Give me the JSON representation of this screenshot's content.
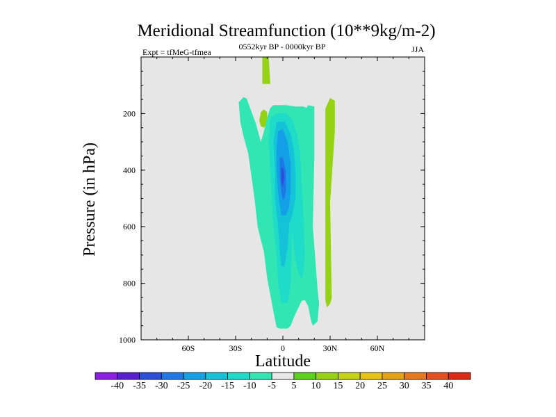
{
  "chart_data": {
    "type": "contour",
    "title": "Meridional Streamfunction (10**9kg/m-2)",
    "left_subtitle": "Expt = tfMeG-tfmea",
    "center_subtitle": "0552kyr BP - 0000kyr BP",
    "right_subtitle": "JJA",
    "xlabel": "Latitude",
    "ylabel": "Pressure (in hPa)",
    "xlim": [
      -90,
      90
    ],
    "ylim": [
      1000,
      0
    ],
    "y_reversed": true,
    "x_ticks": [
      {
        "value": -60,
        "label": "60S"
      },
      {
        "value": -30,
        "label": "30S"
      },
      {
        "value": 0,
        "label": "0"
      },
      {
        "value": 30,
        "label": "30N"
      },
      {
        "value": 60,
        "label": "60N"
      }
    ],
    "y_ticks": [
      {
        "value": 200,
        "label": "200"
      },
      {
        "value": 400,
        "label": "400"
      },
      {
        "value": 600,
        "label": "600"
      },
      {
        "value": 800,
        "label": "800"
      },
      {
        "value": 1000,
        "label": "1000"
      }
    ],
    "plot_background": "#e6e6e6",
    "colorbar": {
      "levels": [
        "-40",
        "-35",
        "-30",
        "-25",
        "-20",
        "-15",
        "-10",
        "-5",
        "5",
        "10",
        "15",
        "20",
        "25",
        "30",
        "35",
        "40"
      ],
      "colors": [
        "#8c1ee6",
        "#5a1ed2",
        "#2b4fd9",
        "#1e78e6",
        "#14a0e6",
        "#14c3d7",
        "#1edcc8",
        "#32e6b4",
        "#e6e6e6",
        "#5ad21e",
        "#96d214",
        "#c8d214",
        "#e6c314",
        "#e6a014",
        "#e6781e",
        "#e6501e",
        "#dc2814"
      ]
    },
    "regions": [
      {
        "name": "positive-upper-tongue",
        "value": 10,
        "points": [
          [
            -13,
            0
          ],
          [
            -9,
            0
          ],
          [
            -8,
            95
          ],
          [
            -13,
            95
          ]
        ]
      },
      {
        "name": "positive-small-blob",
        "value": 10,
        "points": [
          [
            -15,
            225
          ],
          [
            -14,
            195
          ],
          [
            -12,
            185
          ],
          [
            -10,
            195
          ],
          [
            -10,
            232
          ],
          [
            -12,
            250
          ],
          [
            -14,
            245
          ]
        ]
      },
      {
        "name": "positive-30n-band",
        "value": 10,
        "points": [
          [
            30,
            145
          ],
          [
            33,
            155
          ],
          [
            33,
            262
          ],
          [
            30,
            512
          ],
          [
            31,
            852
          ],
          [
            30,
            872
          ],
          [
            28,
            885
          ],
          [
            27,
            862
          ],
          [
            27,
            182
          ]
        ]
      },
      {
        "name": "negative-outer-band",
        "value": -7.5,
        "points": [
          [
            -28,
            160
          ],
          [
            -25,
            142
          ],
          [
            -23,
            147
          ],
          [
            -17,
            238
          ],
          [
            -14,
            300
          ],
          [
            -12,
            262
          ],
          [
            -10,
            215
          ],
          [
            -8,
            180
          ],
          [
            -6,
            170
          ],
          [
            2,
            170
          ],
          [
            8,
            175
          ],
          [
            13,
            175
          ],
          [
            15,
            180
          ],
          [
            16,
            170
          ],
          [
            20,
            175
          ],
          [
            20,
            350
          ],
          [
            19,
            600
          ],
          [
            22,
            820
          ],
          [
            23,
            872
          ],
          [
            22,
            935
          ],
          [
            19,
            950
          ],
          [
            18,
            935
          ],
          [
            16,
            880
          ],
          [
            14,
            860
          ],
          [
            12,
            862
          ],
          [
            7,
            920
          ],
          [
            5,
            950
          ],
          [
            3,
            960
          ],
          [
            -2,
            960
          ],
          [
            -4,
            955
          ],
          [
            -6,
            900
          ],
          [
            -10,
            780
          ],
          [
            -12,
            690
          ],
          [
            -16,
            600
          ],
          [
            -18,
            500
          ],
          [
            -20,
            420
          ],
          [
            -22,
            340
          ],
          [
            -25,
            280
          ],
          [
            -27,
            230
          ]
        ]
      },
      {
        "name": "negative-level-2",
        "value": -12.5,
        "points": [
          [
            -8,
            215
          ],
          [
            -4,
            200
          ],
          [
            2,
            198
          ],
          [
            6,
            222
          ],
          [
            9,
            275
          ],
          [
            11,
            340
          ],
          [
            12,
            450
          ],
          [
            13,
            560
          ],
          [
            14,
            700
          ],
          [
            13,
            760
          ],
          [
            12,
            785
          ],
          [
            10,
            765
          ],
          [
            8,
            720
          ],
          [
            6,
            620
          ],
          [
            5,
            800
          ],
          [
            3,
            870
          ],
          [
            -1,
            870
          ],
          [
            -3,
            800
          ],
          [
            -4,
            700
          ],
          [
            -6,
            600
          ],
          [
            -7,
            500
          ],
          [
            -8,
            400
          ],
          [
            -9,
            300
          ]
        ]
      },
      {
        "name": "negative-level-3",
        "value": -17.5,
        "points": [
          [
            -4,
            230
          ],
          [
            1,
            228
          ],
          [
            5,
            272
          ],
          [
            7,
            330
          ],
          [
            8,
            410
          ],
          [
            8,
            500
          ],
          [
            6,
            560
          ],
          [
            4,
            590
          ],
          [
            3,
            675
          ],
          [
            1,
            740
          ],
          [
            -1,
            740
          ],
          [
            -2,
            680
          ],
          [
            -3,
            600
          ],
          [
            -5,
            500
          ],
          [
            -5,
            400
          ],
          [
            -6,
            300
          ]
        ]
      },
      {
        "name": "negative-level-4",
        "value": -22.5,
        "points": [
          [
            -3,
            262
          ],
          [
            0,
            255
          ],
          [
            3,
            300
          ],
          [
            5,
            380
          ],
          [
            5,
            470
          ],
          [
            4,
            530
          ],
          [
            2,
            560
          ],
          [
            -1,
            560
          ],
          [
            -3,
            480
          ],
          [
            -4,
            400
          ],
          [
            -4,
            320
          ]
        ]
      },
      {
        "name": "negative-level-5",
        "value": -27.5,
        "points": [
          [
            -2,
            355
          ],
          [
            0,
            355
          ],
          [
            2,
            405
          ],
          [
            2,
            470
          ],
          [
            1,
            500
          ],
          [
            0,
            505
          ],
          [
            -1,
            480
          ],
          [
            -2,
            420
          ]
        ]
      },
      {
        "name": "negative-core",
        "value": -32.5,
        "points": [
          [
            -1,
            390
          ],
          [
            0,
            392
          ],
          [
            1,
            420
          ],
          [
            0,
            460
          ],
          [
            -1,
            440
          ]
        ]
      }
    ]
  }
}
